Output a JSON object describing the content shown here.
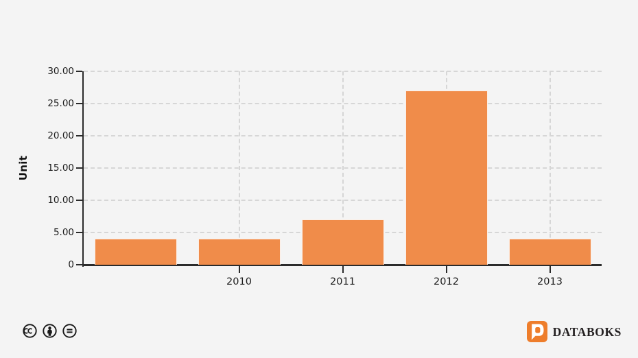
{
  "colors": {
    "background": "#f4f4f4",
    "bar": "#f08c4a",
    "axis": "#2b2b2b",
    "grid": "#d6d6d6",
    "text": "#1a1a1a",
    "logo_orange": "#ee7d2b"
  },
  "chart_data": {
    "type": "bar",
    "categories": [
      "",
      "2010",
      "2011",
      "2012",
      "2013"
    ],
    "values": [
      4,
      4,
      7,
      27,
      4
    ],
    "title": "",
    "xlabel": "",
    "ylabel": "Unit",
    "ylim": [
      0,
      30
    ],
    "yticks": [
      {
        "label": "30.00",
        "value": 30
      },
      {
        "label": "25.00",
        "value": 25
      },
      {
        "label": "20.00",
        "value": 20
      },
      {
        "label": "15.00",
        "value": 15
      },
      {
        "label": "10.00",
        "value": 10
      },
      {
        "label": "5.00",
        "value": 5
      },
      {
        "label": "0",
        "value": 0
      }
    ],
    "grid": "dashed; horizontal at every 5 units, vertical at labeled year ticks",
    "legend": "none",
    "bar_color": "#f08c4a"
  },
  "footer": {
    "license_icons": [
      "cc-icon",
      "attribution-icon",
      "no-derivatives-icon"
    ],
    "brand": "DATABOKS"
  }
}
